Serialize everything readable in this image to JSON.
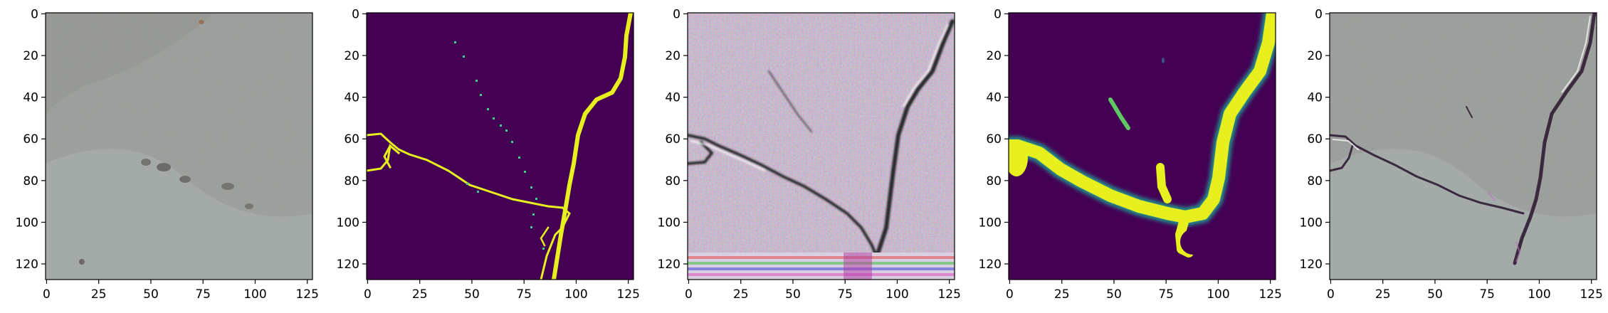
{
  "figure": {
    "panels": [
      {
        "id": "panel-1",
        "content": "concrete surface photo"
      },
      {
        "id": "panel-2",
        "content": "binary crack mask"
      },
      {
        "id": "panel-3",
        "content": "generated texture with artifacts"
      },
      {
        "id": "panel-4",
        "content": "predicted crack probability map"
      },
      {
        "id": "panel-5",
        "content": "concrete photo with crack overlay"
      }
    ],
    "x_ticks": [
      "0",
      "25",
      "50",
      "75",
      "100",
      "125"
    ],
    "y_ticks": [
      "0",
      "20",
      "40",
      "60",
      "80",
      "100",
      "120"
    ],
    "x_tick_values": [
      0,
      25,
      50,
      75,
      100,
      125
    ],
    "y_tick_values": [
      0,
      20,
      40,
      60,
      80,
      100,
      120
    ],
    "axis_range": [
      0,
      128
    ],
    "colors": {
      "concrete": "#9a9d9a",
      "mask_background": "#440154",
      "mask_crack": "#e7f01e",
      "noise_tint": "#c7b6c9",
      "overlay_crack": "#3a2a3e"
    }
  }
}
